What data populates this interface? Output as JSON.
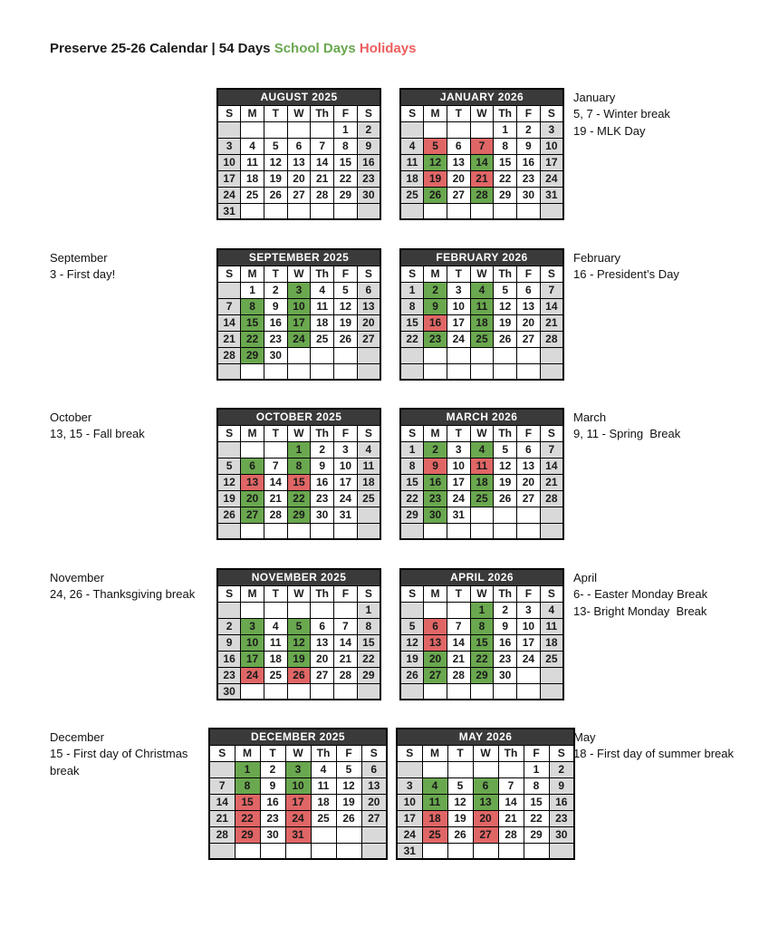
{
  "page": {
    "title_main": "Preserve 25-26 Calendar | 54 Days",
    "legend_school": "School Days",
    "legend_holidays": "Holidays"
  },
  "colors": {
    "school_green": "#6aa84f",
    "holiday_red": "#e06666",
    "weekend_gray": "#d9d9d9",
    "month_header_bg": "#3a3a3a",
    "month_header_text": "#ffffff",
    "legend_green_text": "#6aa84f",
    "legend_red_text": "#ed5e5e"
  },
  "day_headers": [
    "S",
    "M",
    "T",
    "W",
    "Th",
    "F",
    "S"
  ],
  "rows": [
    {
      "left_note": null,
      "right_note": [
        "January",
        "5, 7 - Winter break",
        "19 - MLK Day"
      ],
      "calendars": [
        {
          "title": "AUGUST 2025",
          "weeks": [
            [
              "",
              "",
              "",
              "",
              "",
              "1",
              "2"
            ],
            [
              "3",
              "4",
              "5",
              "6",
              "7",
              "8",
              "9"
            ],
            [
              "10",
              "11",
              "12",
              "13",
              "14",
              "15",
              "16"
            ],
            [
              "17",
              "18",
              "19",
              "20",
              "21",
              "22",
              "23"
            ],
            [
              "24",
              "25",
              "26",
              "27",
              "28",
              "29",
              "30"
            ],
            [
              "31",
              "",
              "",
              "",
              "",
              "",
              ""
            ]
          ]
        },
        {
          "title": "JANUARY 2026",
          "weeks": [
            [
              "",
              "",
              "",
              "",
              "1",
              "2",
              "3"
            ],
            [
              "4",
              "5r",
              "6",
              "7r",
              "8",
              "9",
              "10"
            ],
            [
              "11",
              "12g",
              "13",
              "14g",
              "15",
              "16",
              "17"
            ],
            [
              "18",
              "19r",
              "20",
              "21r",
              "22",
              "23",
              "24"
            ],
            [
              "25",
              "26g",
              "27",
              "28g",
              "29",
              "30",
              "31"
            ],
            [
              "",
              "",
              "",
              "",
              "",
              "",
              ""
            ]
          ]
        }
      ]
    },
    {
      "left_note": [
        "September",
        "3 - First day!"
      ],
      "right_note": [
        "February",
        "16 - President’s Day"
      ],
      "calendars": [
        {
          "title": "SEPTEMBER 2025",
          "weeks": [
            [
              "",
              "1",
              "2",
              "3g",
              "4",
              "5",
              "6"
            ],
            [
              "7",
              "8g",
              "9",
              "10g",
              "11",
              "12",
              "13"
            ],
            [
              "14",
              "15g",
              "16",
              "17g",
              "18",
              "19",
              "20"
            ],
            [
              "21",
              "22g",
              "23",
              "24g",
              "25",
              "26",
              "27"
            ],
            [
              "28",
              "29g",
              "30",
              "",
              "",
              "",
              ""
            ],
            [
              "",
              "",
              "",
              "",
              "",
              "",
              ""
            ]
          ]
        },
        {
          "title": "FEBRUARY 2026",
          "weeks": [
            [
              "1",
              "2g",
              "3",
              "4g",
              "5",
              "6",
              "7"
            ],
            [
              "8",
              "9g",
              "10",
              "11g",
              "12",
              "13",
              "14"
            ],
            [
              "15",
              "16r",
              "17",
              "18g",
              "19",
              "20",
              "21"
            ],
            [
              "22",
              "23g",
              "24",
              "25g",
              "26",
              "27",
              "28"
            ],
            [
              "",
              "",
              "",
              "",
              "",
              "",
              ""
            ],
            [
              "",
              "",
              "",
              "",
              "",
              "",
              ""
            ]
          ]
        }
      ]
    },
    {
      "left_note": [
        "October",
        "13, 15 - Fall break"
      ],
      "right_note": [
        "March",
        "9, 11 - Spring  Break"
      ],
      "calendars": [
        {
          "title": "OCTOBER 2025",
          "weeks": [
            [
              "",
              "",
              "",
              "1g",
              "2",
              "3",
              "4"
            ],
            [
              "5",
              "6g",
              "7",
              "8g",
              "9",
              "10",
              "11"
            ],
            [
              "12",
              "13r",
              "14",
              "15r",
              "16",
              "17",
              "18"
            ],
            [
              "19",
              "20g",
              "21",
              "22g",
              "23",
              "24",
              "25"
            ],
            [
              "26",
              "27g",
              "28",
              "29g",
              "30",
              "31",
              ""
            ],
            [
              "",
              "",
              "",
              "",
              "",
              "",
              ""
            ]
          ]
        },
        {
          "title": "MARCH 2026",
          "weeks": [
            [
              "1",
              "2g",
              "3",
              "4g",
              "5",
              "6",
              "7"
            ],
            [
              "8",
              "9r",
              "10",
              "11r",
              "12",
              "13",
              "14"
            ],
            [
              "15",
              "16g",
              "17",
              "18g",
              "19",
              "20",
              "21"
            ],
            [
              "22",
              "23g",
              "24",
              "25g",
              "26",
              "27",
              "28"
            ],
            [
              "29",
              "30g",
              "31",
              "",
              "",
              "",
              ""
            ],
            [
              "",
              "",
              "",
              "",
              "",
              "",
              ""
            ]
          ]
        }
      ]
    },
    {
      "left_note": [
        "November",
        "24, 26 - Thanksgiving break"
      ],
      "right_note": [
        "April",
        "6- - Easter Monday Break",
        "13- Bright Monday  Break"
      ],
      "calendars": [
        {
          "title": "NOVEMBER 2025",
          "weeks": [
            [
              "",
              "",
              "",
              "",
              "",
              "",
              "1"
            ],
            [
              "2",
              "3g",
              "4",
              "5g",
              "6",
              "7",
              "8"
            ],
            [
              "9",
              "10g",
              "11",
              "12g",
              "13",
              "14",
              "15"
            ],
            [
              "16",
              "17g",
              "18",
              "19g",
              "20",
              "21",
              "22"
            ],
            [
              "23",
              "24r",
              "25",
              "26r",
              "27",
              "28",
              "29"
            ],
            [
              "30",
              "",
              "",
              "",
              "",
              "",
              ""
            ]
          ]
        },
        {
          "title": "APRIL 2026",
          "weeks": [
            [
              "",
              "",
              "",
              "1g",
              "2",
              "3",
              "4"
            ],
            [
              "5",
              "6r",
              "7",
              "8g",
              "9",
              "10",
              "11"
            ],
            [
              "12",
              "13r",
              "14",
              "15g",
              "16",
              "17",
              "18"
            ],
            [
              "19",
              "20g",
              "21",
              "22g",
              "23",
              "24",
              "25"
            ],
            [
              "26",
              "27g",
              "28",
              "29g",
              "30",
              "",
              ""
            ],
            [
              "",
              "",
              "",
              "",
              "",
              "",
              ""
            ]
          ]
        }
      ]
    },
    {
      "left_note": [
        "December",
        "15 - First day of Christmas break"
      ],
      "right_note": [
        "May",
        "18 - First day of summer break"
      ],
      "calendars": [
        {
          "title": "DECEMBER 2025",
          "weeks": [
            [
              "",
              "1g",
              "2",
              "3g",
              "4",
              "5",
              "6"
            ],
            [
              "7",
              "8g",
              "9",
              "10g",
              "11",
              "12",
              "13"
            ],
            [
              "14",
              "15r",
              "16",
              "17r",
              "18",
              "19",
              "20"
            ],
            [
              "21",
              "22r",
              "23",
              "24r",
              "25",
              "26",
              "27"
            ],
            [
              "28",
              "29r",
              "30",
              "31r",
              "",
              "",
              ""
            ],
            [
              "",
              "",
              "",
              "",
              "",
              "",
              ""
            ]
          ]
        },
        {
          "title": "MAY 2026",
          "weeks": [
            [
              "",
              "",
              "",
              "",
              "",
              "1",
              "2"
            ],
            [
              "3",
              "4g",
              "5",
              "6g",
              "7",
              "8",
              "9"
            ],
            [
              "10",
              "11g",
              "12",
              "13g",
              "14",
              "15",
              "16"
            ],
            [
              "17",
              "18r",
              "19",
              "20r",
              "21",
              "22",
              "23"
            ],
            [
              "24",
              "25r",
              "26",
              "27r",
              "28",
              "29",
              "30"
            ],
            [
              "31",
              "",
              "",
              "",
              "",
              "",
              ""
            ]
          ]
        }
      ]
    }
  ]
}
